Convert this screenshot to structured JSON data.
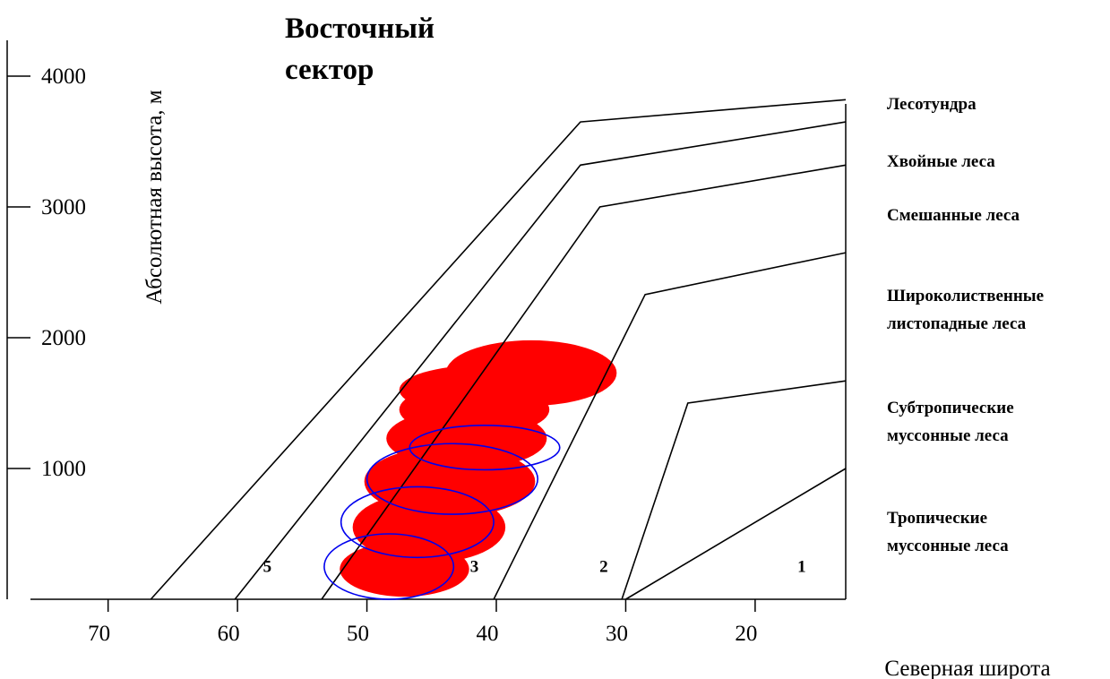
{
  "chart_data": {
    "type": "line",
    "title": "Восточный сектор",
    "title_lines": [
      "Восточный",
      "сектор"
    ],
    "xlabel": "Северная широта",
    "ylabel": "Абсолютная высота, м",
    "xlim": [
      76,
      13
    ],
    "ylim": [
      -1000,
      4350
    ],
    "x_axis_reversed": true,
    "x_ticks": [
      70,
      60,
      50,
      40,
      30,
      20
    ],
    "y_ticks": [
      1000,
      2000,
      3000,
      4000
    ],
    "grid": false,
    "legend": "right",
    "series": [
      {
        "name": "Лесотундра",
        "x": [
          66.7,
          33.5,
          13
        ],
        "y": [
          0,
          3650,
          3820
        ]
      },
      {
        "name": "Хвойные леса",
        "x": [
          60.2,
          33.5,
          13
        ],
        "y": [
          0,
          3320,
          3650
        ]
      },
      {
        "name": "Смешанные леса",
        "x": [
          53.5,
          32,
          13
        ],
        "y": [
          0,
          3000,
          3320
        ]
      },
      {
        "name": "Широколиственные листопадные леса",
        "x": [
          40.2,
          28.5,
          13
        ],
        "y": [
          0,
          2330,
          2650
        ]
      },
      {
        "name": "Субтропические муссонные леса",
        "x": [
          30.3,
          25.2,
          13
        ],
        "y": [
          0,
          1500,
          1670
        ]
      },
      {
        "name": "Тропические муссонные леса",
        "x": [
          13
        ],
        "y": [
          1000
        ]
      }
    ],
    "legend_labels": [
      [
        "Лесотундра"
      ],
      [
        "Хвойные леса"
      ],
      [
        "Смешанные леса"
      ],
      [
        "Широколиственные",
        "листопадные леса"
      ],
      [
        "Субтропические",
        "муссонные леса"
      ],
      [
        "Тропические",
        "муссонные леса"
      ]
    ],
    "zone_labels": [
      {
        "text": "5",
        "x": 57.7,
        "y": 250
      },
      {
        "text": "3",
        "x": 41.7,
        "y": 250
      },
      {
        "text": "2",
        "x": 31.7,
        "y": 250
      },
      {
        "text": "1",
        "x": 16.4,
        "y": 250
      }
    ],
    "filled_ellipses": [
      {
        "cx": 47.1,
        "cy": 230,
        "rx": 5.0,
        "ry": 210
      },
      {
        "cx": 45.2,
        "cy": 550,
        "rx": 5.9,
        "ry": 270
      },
      {
        "cx": 43.6,
        "cy": 900,
        "rx": 6.6,
        "ry": 270
      },
      {
        "cx": 42.3,
        "cy": 1230,
        "rx": 6.2,
        "ry": 230
      },
      {
        "cx": 41.7,
        "cy": 1450,
        "rx": 5.8,
        "ry": 200
      },
      {
        "cx": 41.1,
        "cy": 1600,
        "rx": 6.4,
        "ry": 190
      },
      {
        "cx": 37.3,
        "cy": 1730,
        "rx": 6.6,
        "ry": 250
      }
    ],
    "outline_ellipses": [
      {
        "cx": 48.3,
        "cy": 250,
        "rx": 5.0,
        "ry": 250
      },
      {
        "cx": 46.1,
        "cy": 590,
        "rx": 5.9,
        "ry": 270
      },
      {
        "cx": 43.4,
        "cy": 920,
        "rx": 6.6,
        "ry": 270
      },
      {
        "cx": 40.9,
        "cy": 1160,
        "rx": 5.8,
        "ry": 170
      }
    ],
    "colors": {
      "lines": "#000000",
      "filled_ellipses": "#ff0000",
      "outline_ellipses": "#0000ee",
      "background": "#ffffff"
    }
  }
}
